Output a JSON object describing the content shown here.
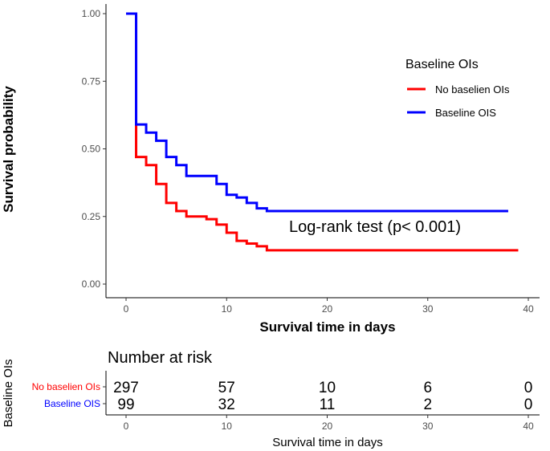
{
  "colors": {
    "no_baseline": "#ff0000",
    "baseline": "#0000ff"
  },
  "chart_data": [
    {
      "type": "line",
      "subtype": "kaplan-meier step",
      "title": "",
      "xlabel": "Survival time in days",
      "ylabel": "Survival probability",
      "xlim": [
        0,
        40
      ],
      "ylim": [
        0,
        1
      ],
      "x_ticks": [
        "0",
        "10",
        "20",
        "30",
        "40"
      ],
      "y_ticks": [
        "0.00",
        "0.25",
        "0.50",
        "0.75",
        "1.00"
      ],
      "legend_title": "Baseline OIs",
      "legend_position": "top-right",
      "annotation": "Log-rank test (p< 0.001)",
      "series": [
        {
          "name": "No baselien OIs",
          "color": "#ff0000",
          "steps": [
            [
              0,
              1.0
            ],
            [
              1,
              0.47
            ],
            [
              2,
              0.44
            ],
            [
              3,
              0.37
            ],
            [
              4,
              0.3
            ],
            [
              5,
              0.27
            ],
            [
              6,
              0.25
            ],
            [
              8,
              0.24
            ],
            [
              9,
              0.22
            ],
            [
              10,
              0.19
            ],
            [
              11,
              0.16
            ],
            [
              12,
              0.15
            ],
            [
              13,
              0.14
            ],
            [
              14,
              0.125
            ],
            [
              39,
              0.125
            ]
          ]
        },
        {
          "name": "Baseline OIS",
          "color": "#0000ff",
          "steps": [
            [
              0,
              1.0
            ],
            [
              1,
              0.59
            ],
            [
              2,
              0.56
            ],
            [
              3,
              0.53
            ],
            [
              4,
              0.47
            ],
            [
              5,
              0.44
            ],
            [
              6,
              0.4
            ],
            [
              9,
              0.37
            ],
            [
              10,
              0.33
            ],
            [
              11,
              0.32
            ],
            [
              12,
              0.3
            ],
            [
              13,
              0.28
            ],
            [
              14,
              0.27
            ],
            [
              38,
              0.27
            ]
          ]
        }
      ]
    },
    {
      "type": "table",
      "title": "Number at risk",
      "xlabel": "Survival time in days",
      "ylabel": "Baseline OIs",
      "xlim": [
        0,
        40
      ],
      "x_ticks": [
        "0",
        "10",
        "20",
        "30",
        "40"
      ],
      "times": [
        0,
        10,
        20,
        30,
        40
      ],
      "rows": [
        {
          "name": "No baselien OIs",
          "color": "#ff0000",
          "labels": [
            "297",
            "57",
            "10",
            "6",
            "0"
          ]
        },
        {
          "name": "Baseline OIS",
          "color": "#0000ff",
          "labels": [
            "99",
            "32",
            "11",
            "2",
            "0"
          ]
        }
      ]
    }
  ]
}
